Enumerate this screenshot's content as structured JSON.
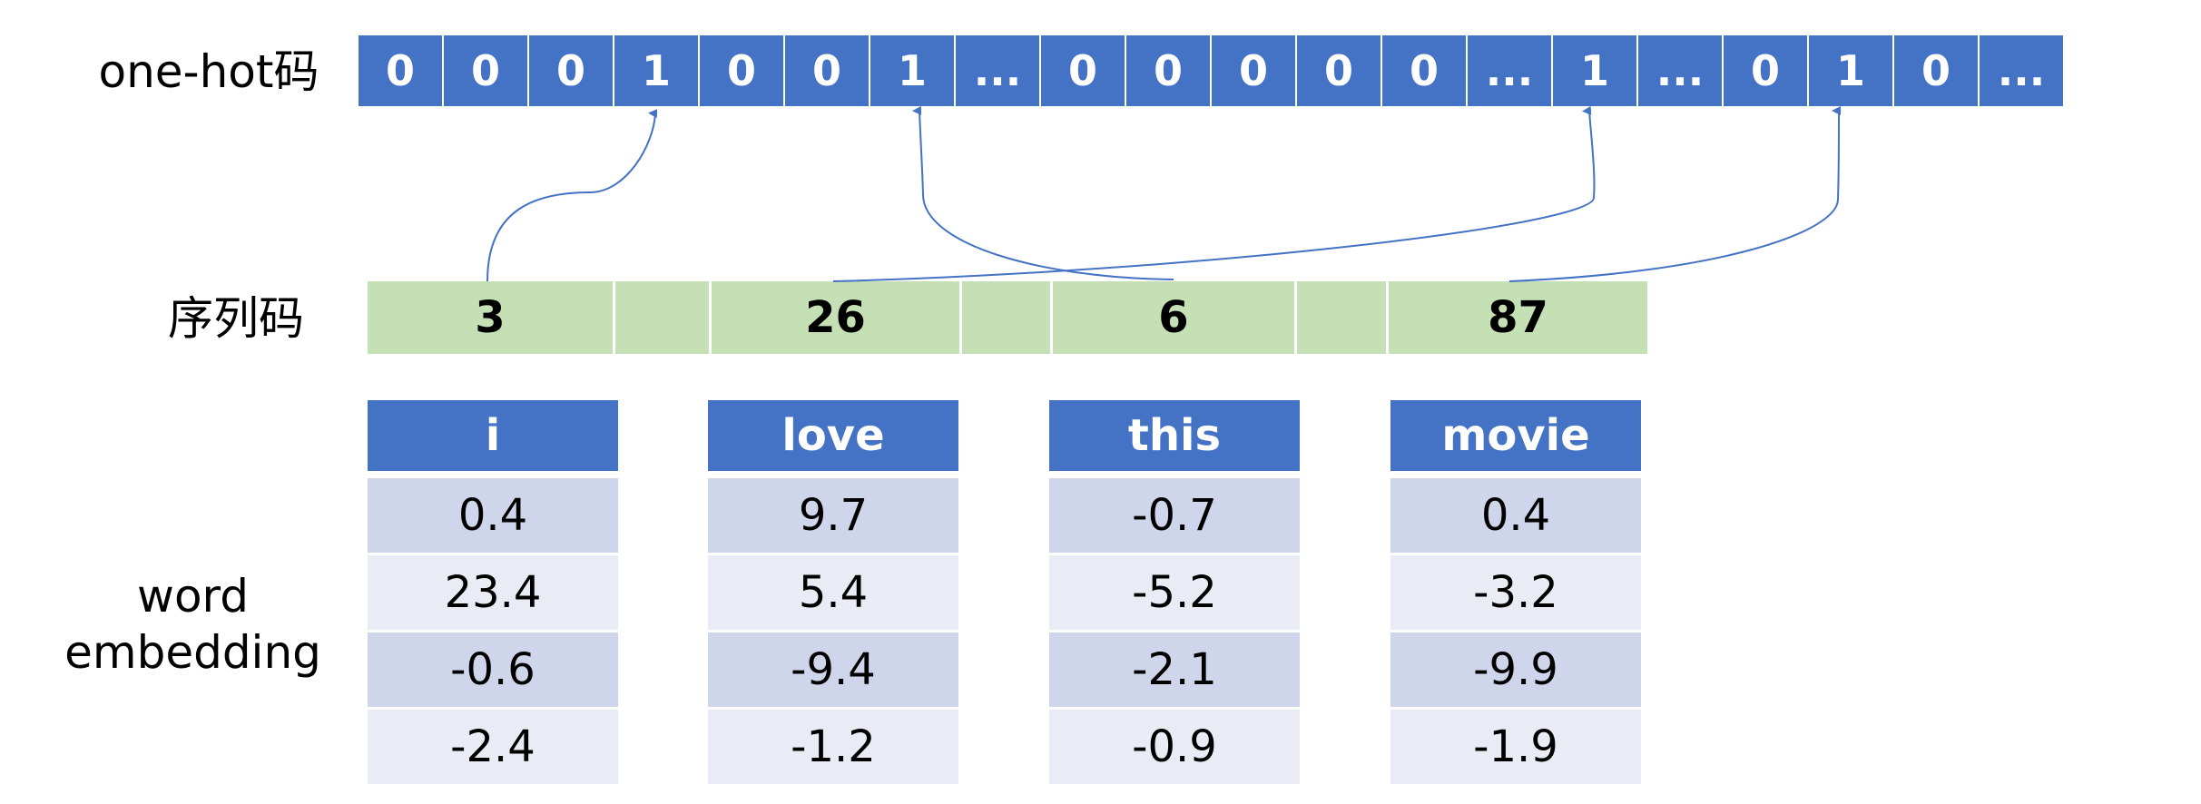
{
  "labels": {
    "onehot": "one-hot码",
    "seq": "序列码",
    "emb_line1": "word",
    "emb_line2": "embedding"
  },
  "onehot_cells": [
    "0",
    "0",
    "0",
    "1",
    "0",
    "0",
    "1",
    "...",
    "0",
    "0",
    "0",
    "0",
    "0",
    "...",
    "1",
    "...",
    "0",
    "1",
    "0",
    "..."
  ],
  "seq_cells": [
    "3",
    "",
    "26",
    "",
    "6",
    "",
    "87"
  ],
  "embeddings": [
    {
      "word": "i",
      "values": [
        "0.4",
        "23.4",
        "-0.6",
        "-2.4"
      ]
    },
    {
      "word": "love",
      "values": [
        "9.7",
        "5.4",
        "-9.4",
        "-1.2"
      ]
    },
    {
      "word": "this",
      "values": [
        "-0.7",
        "-5.2",
        "-2.1",
        "-0.9"
      ]
    },
    {
      "word": "movie",
      "values": [
        "0.4",
        "-3.2",
        "-9.9",
        "-1.9"
      ]
    }
  ],
  "colors": {
    "blue": "#4472c4",
    "green": "#c5e0b4",
    "row_dark": "#cfd5ea",
    "row_light": "#e9ebf5",
    "arrow": "#4472c4"
  }
}
